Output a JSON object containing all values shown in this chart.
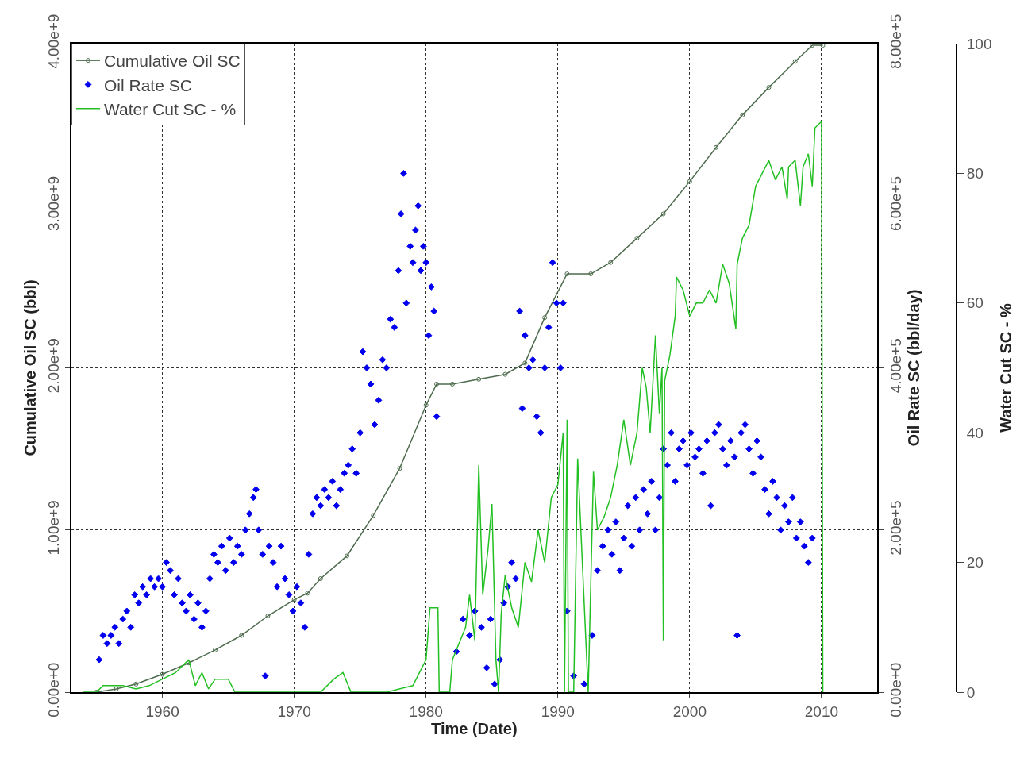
{
  "chart_data": {
    "type": "scatter",
    "xlabel": "Time (Date)",
    "ylabel": "Cumulative Oil SC (bbl)",
    "y2label": "Oil Rate SC (bbl/day)",
    "y3label": "Water Cut SC - %",
    "xlim": [
      1953.1,
      2014.2
    ],
    "xticks": [
      1960,
      1970,
      1980,
      1990,
      2000,
      2010
    ],
    "ylim": [
      0,
      4000000000
    ],
    "yticks": [
      {
        "value": 0,
        "label": "0.00e+0"
      },
      {
        "value": 1000000000,
        "label": "1.00e+9"
      },
      {
        "value": 2000000000,
        "label": "2.00e+9"
      },
      {
        "value": 3000000000,
        "label": "3.00e+9"
      },
      {
        "value": 4000000000,
        "label": "4.00e+9"
      }
    ],
    "y2lim": [
      0,
      800000
    ],
    "y2ticks": [
      {
        "value": 0,
        "label": "0.00e+0"
      },
      {
        "value": 200000,
        "label": "2.00e+5"
      },
      {
        "value": 400000,
        "label": "4.00e+5"
      },
      {
        "value": 600000,
        "label": "6.00e+5"
      },
      {
        "value": 800000,
        "label": "8.00e+5"
      }
    ],
    "y3lim": [
      0,
      100
    ],
    "y3ticks": [
      0,
      20,
      40,
      60,
      80,
      100
    ],
    "grid": true,
    "legend": "top left",
    "series": [
      {
        "name": "Cumulative Oil SC",
        "type": "line",
        "marker": "circle",
        "axis": "y",
        "color": "#4d6b4d",
        "x": [
          1955,
          1956.5,
          1958,
          1960,
          1962,
          1964,
          1966,
          1968,
          1970,
          1971,
          1972,
          1974,
          1976,
          1978,
          1980,
          1980.8,
          1982,
          1984,
          1986,
          1987.5,
          1989,
          1990.7,
          1992.5,
          1994,
          1996,
          1998,
          2000,
          2002,
          2004,
          2006,
          2008,
          2009.3,
          2010.1
        ],
        "values": [
          0,
          20000000,
          50000000,
          110000000,
          180000000,
          260000000,
          350000000,
          470000000,
          570000000,
          610000000,
          700000000,
          840000000,
          1090000000,
          1380000000,
          1770000000,
          1900000000,
          1900000000,
          1930000000,
          1960000000,
          2030000000,
          2310000000,
          2580000000,
          2580000000,
          2650000000,
          2800000000,
          2950000000,
          3150000000,
          3360000000,
          3560000000,
          3730000000,
          3890000000,
          3990000000,
          3990000000
        ]
      },
      {
        "name": "Oil Rate SC",
        "type": "scatter",
        "marker": "diamond",
        "axis": "y2",
        "color": "#0000ee",
        "x": [
          1955.2,
          1955.5,
          1955.8,
          1956.1,
          1956.4,
          1956.7,
          1957,
          1957.3,
          1957.6,
          1957.9,
          1958.2,
          1958.5,
          1958.8,
          1959.1,
          1959.4,
          1959.7,
          1960,
          1960.3,
          1960.6,
          1960.9,
          1961.2,
          1961.5,
          1961.8,
          1962.1,
          1962.4,
          1962.7,
          1963,
          1963.3,
          1963.6,
          1963.9,
          1964.2,
          1964.5,
          1964.8,
          1965.1,
          1965.4,
          1965.7,
          1966,
          1966.3,
          1966.6,
          1966.9,
          1967.1,
          1967.3,
          1967.6,
          1967.8,
          1968.1,
          1968.4,
          1968.7,
          1969,
          1969.3,
          1969.6,
          1969.9,
          1970.2,
          1970.5,
          1970.8,
          1971.1,
          1971.4,
          1971.7,
          1972,
          1972.3,
          1972.6,
          1972.9,
          1973.2,
          1973.5,
          1973.8,
          1974.1,
          1974.4,
          1974.7,
          1975,
          1975.2,
          1975.5,
          1975.8,
          1976.1,
          1976.4,
          1976.7,
          1977,
          1977.3,
          1977.6,
          1977.9,
          1978.1,
          1978.3,
          1978.5,
          1978.8,
          1979,
          1979.2,
          1979.4,
          1979.6,
          1979.8,
          1980,
          1980.2,
          1980.4,
          1980.6,
          1980.8,
          1982.3,
          1982.8,
          1983.3,
          1983.7,
          1984.2,
          1984.6,
          1984.9,
          1985.2,
          1985.6,
          1985.9,
          1986.2,
          1986.5,
          1986.8,
          1987.1,
          1987.3,
          1987.5,
          1987.8,
          1988.1,
          1988.4,
          1988.7,
          1989,
          1989.3,
          1989.6,
          1989.9,
          1990.2,
          1990.4,
          1990.7,
          1991.2,
          1992,
          1992.6,
          1993,
          1993.4,
          1993.8,
          1994.1,
          1994.4,
          1994.7,
          1995,
          1995.3,
          1995.6,
          1995.9,
          1996.2,
          1996.5,
          1996.8,
          1997.1,
          1997.4,
          1997.7,
          1998,
          1998.3,
          1998.6,
          1998.9,
          1999.2,
          1999.5,
          1999.8,
          2000.1,
          2000.4,
          2000.7,
          2001,
          2001.3,
          2001.6,
          2001.9,
          2002.2,
          2002.5,
          2002.8,
          2003.1,
          2003.4,
          2003.6,
          2003.9,
          2004.2,
          2004.5,
          2004.8,
          2005.1,
          2005.4,
          2005.7,
          2006,
          2006.3,
          2006.6,
          2006.9,
          2007.2,
          2007.5,
          2007.8,
          2008.1,
          2008.4,
          2008.7,
          2009,
          2009.3
        ],
        "values": [
          40000,
          70000,
          60000,
          70000,
          80000,
          60000,
          90000,
          100000,
          80000,
          120000,
          110000,
          130000,
          120000,
          140000,
          130000,
          140000,
          130000,
          160000,
          150000,
          120000,
          140000,
          110000,
          100000,
          120000,
          90000,
          110000,
          80000,
          100000,
          140000,
          170000,
          160000,
          180000,
          150000,
          190000,
          160000,
          180000,
          170000,
          200000,
          220000,
          240000,
          250000,
          200000,
          170000,
          20000,
          180000,
          160000,
          130000,
          180000,
          140000,
          120000,
          100000,
          130000,
          110000,
          80000,
          170000,
          220000,
          240000,
          230000,
          250000,
          240000,
          260000,
          230000,
          250000,
          270000,
          280000,
          300000,
          270000,
          320000,
          420000,
          400000,
          380000,
          330000,
          360000,
          410000,
          400000,
          460000,
          450000,
          520000,
          590000,
          640000,
          480000,
          550000,
          530000,
          570000,
          600000,
          520000,
          550000,
          530000,
          440000,
          500000,
          470000,
          340000,
          50000,
          90000,
          70000,
          100000,
          80000,
          30000,
          90000,
          10000,
          40000,
          110000,
          130000,
          160000,
          140000,
          470000,
          350000,
          440000,
          400000,
          410000,
          340000,
          320000,
          400000,
          450000,
          530000,
          480000,
          400000,
          480000,
          100000,
          20000,
          10000,
          70000,
          150000,
          180000,
          200000,
          170000,
          210000,
          150000,
          190000,
          230000,
          180000,
          240000,
          200000,
          250000,
          220000,
          260000,
          200000,
          240000,
          300000,
          280000,
          320000,
          260000,
          300000,
          310000,
          280000,
          320000,
          290000,
          300000,
          270000,
          310000,
          230000,
          320000,
          330000,
          300000,
          280000,
          310000,
          290000,
          70000,
          320000,
          330000,
          300000,
          270000,
          310000,
          290000,
          250000,
          220000,
          260000,
          240000,
          200000,
          230000,
          210000,
          240000,
          190000,
          210000,
          180000,
          160000,
          190000
        ]
      },
      {
        "name": "Water Cut SC - %",
        "type": "line",
        "line_style": "solid",
        "axis": "y3",
        "color": "#22c022",
        "x": [
          1954,
          1955,
          1955.5,
          1957,
          1958,
          1959,
          1960,
          1961,
          1962,
          1962.5,
          1963,
          1963.5,
          1964,
          1965,
          1965.5,
          1972,
          1973,
          1973.7,
          1974.3,
          1977,
          1979,
          1980,
          1980.3,
          1980.9,
          1981,
          1981.8,
          1982,
          1983,
          1983.3,
          1983.7,
          1984,
          1984.3,
          1984.7,
          1985,
          1985.3,
          1985.5,
          1985.7,
          1986,
          1986.5,
          1987,
          1987.5,
          1988,
          1988.5,
          1989,
          1989.5,
          1990,
          1990.4,
          1990.5,
          1990.7,
          1990.8,
          1991.2,
          1991.5,
          1992.3,
          1992.7,
          1993,
          1993.5,
          1994,
          1994.5,
          1995,
          1995.5,
          1996,
          1996.4,
          1996.7,
          1997,
          1997.4,
          1997.7,
          1997.9,
          1998,
          1998.1,
          1998.5,
          1998.9,
          1999,
          1999.5,
          2000,
          2000.5,
          2001,
          2001.5,
          2002,
          2002.5,
          2003,
          2003.5,
          2003.6,
          2004,
          2004.5,
          2005,
          2005.5,
          2006,
          2006.5,
          2007,
          2007.4,
          2007.5,
          2008,
          2008.4,
          2008.6,
          2009,
          2009.3,
          2009.5,
          2010,
          2010.1
        ],
        "values": [
          0,
          0,
          1,
          1,
          0.5,
          1,
          2,
          3,
          5,
          1,
          3,
          0.5,
          2,
          2,
          0,
          0,
          2,
          3,
          0,
          0,
          1,
          5,
          13,
          13,
          0,
          0,
          5,
          10,
          15,
          8,
          35,
          15,
          22,
          29,
          5,
          0,
          12,
          18,
          13,
          10,
          20,
          17,
          25,
          20,
          30,
          32,
          40,
          0,
          42,
          0,
          0,
          36,
          0,
          34,
          25,
          27,
          30,
          35,
          42,
          35,
          40,
          50,
          47,
          40,
          55,
          43,
          50,
          8,
          48,
          52,
          58,
          64,
          62,
          58,
          60,
          60,
          62,
          60,
          66,
          63,
          56,
          66,
          70,
          72,
          78,
          80,
          82,
          79,
          81,
          76,
          81,
          82,
          75,
          81,
          83,
          78,
          87,
          88,
          0
        ]
      }
    ]
  }
}
